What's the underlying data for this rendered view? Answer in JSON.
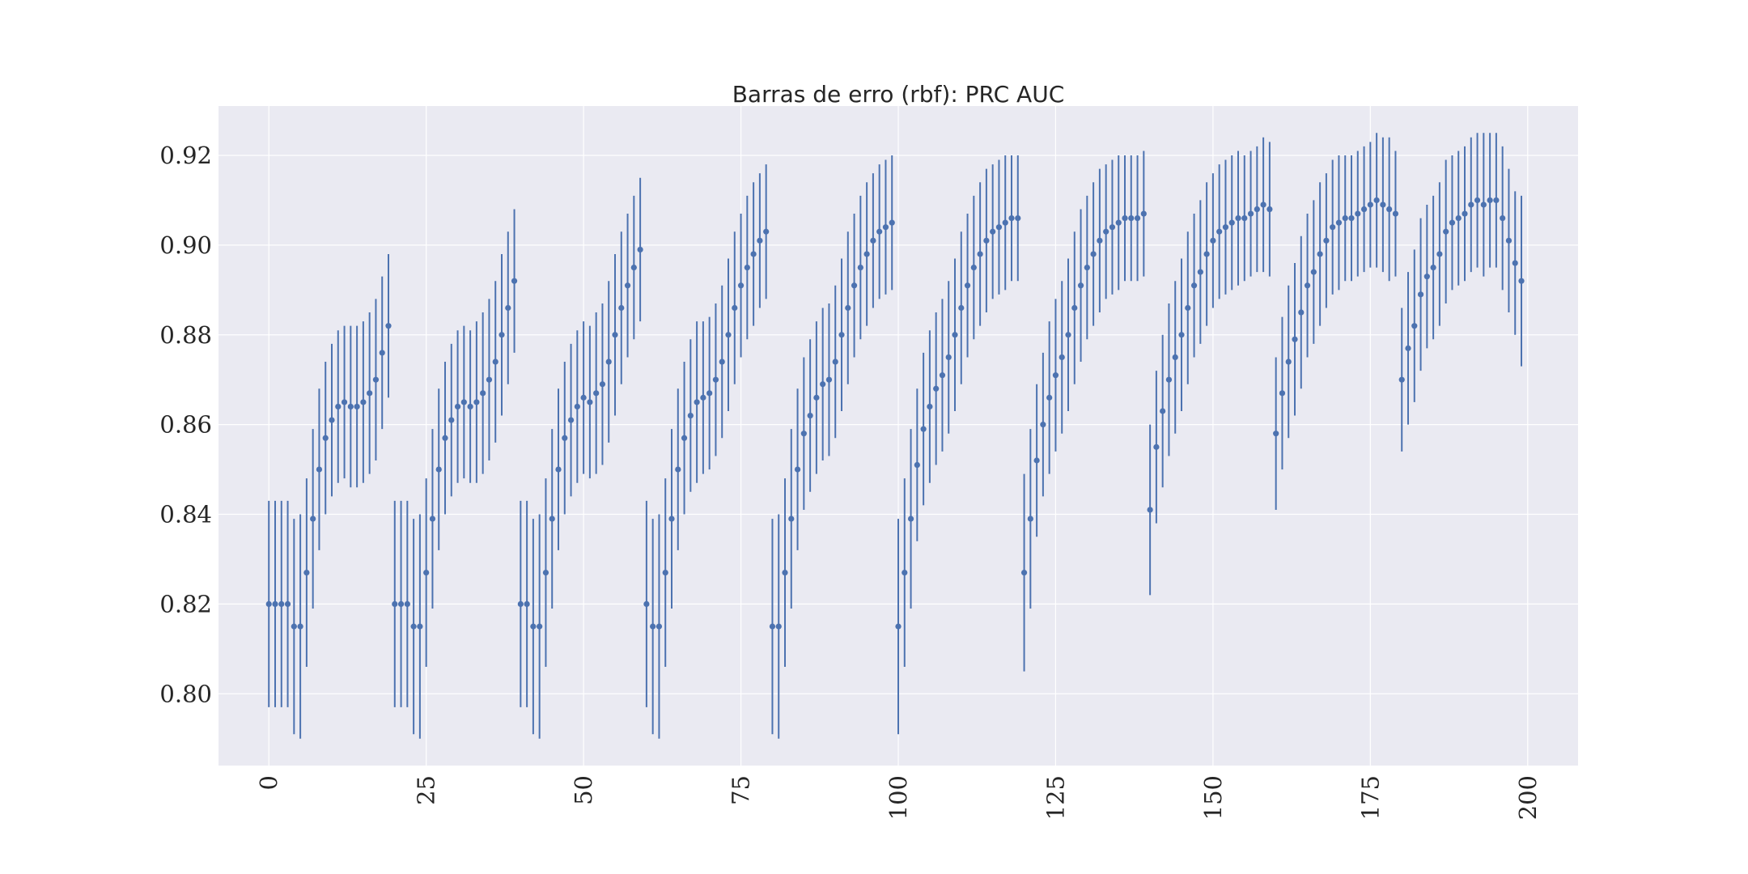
{
  "chart_data": {
    "type": "errorbar",
    "title": "Barras de erro (rbf): PRC AUC",
    "xlabel": "",
    "ylabel": "",
    "xlim": [
      -8,
      208
    ],
    "ylim": [
      0.784,
      0.931
    ],
    "x_ticks": [
      0,
      25,
      50,
      75,
      100,
      125,
      150,
      175,
      200
    ],
    "x_tick_labels": [
      "0",
      "25",
      "50",
      "75",
      "100",
      "125",
      "150",
      "175",
      "200"
    ],
    "y_ticks": [
      0.8,
      0.82,
      0.84,
      0.86,
      0.88,
      0.9,
      0.92
    ],
    "y_tick_labels": [
      "0.80",
      "0.82",
      "0.84",
      "0.86",
      "0.88",
      "0.90",
      "0.92"
    ],
    "grid": true,
    "colors": {
      "series": "#4c72b0",
      "plot_bg": "#eaeaf2",
      "grid": "#ffffff",
      "text": "#262626"
    },
    "series": [
      {
        "x": [
          0,
          1,
          2,
          3,
          4,
          5,
          6,
          7,
          8,
          9,
          10,
          11,
          12,
          13,
          14,
          15,
          16,
          17,
          18,
          19,
          20,
          21,
          22,
          23,
          24,
          25,
          26,
          27,
          28,
          29,
          30,
          31,
          32,
          33,
          34,
          35,
          36,
          37,
          38,
          39,
          40,
          41,
          42,
          43,
          44,
          45,
          46,
          47,
          48,
          49,
          50,
          51,
          52,
          53,
          54,
          55,
          56,
          57,
          58,
          59,
          60,
          61,
          62,
          63,
          64,
          65,
          66,
          67,
          68,
          69,
          70,
          71,
          72,
          73,
          74,
          75,
          76,
          77,
          78,
          79,
          80,
          81,
          82,
          83,
          84,
          85,
          86,
          87,
          88,
          89,
          90,
          91,
          92,
          93,
          94,
          95,
          96,
          97,
          98,
          99,
          100,
          101,
          102,
          103,
          104,
          105,
          106,
          107,
          108,
          109,
          110,
          111,
          112,
          113,
          114,
          115,
          116,
          117,
          118,
          119,
          120,
          121,
          122,
          123,
          124,
          125,
          126,
          127,
          128,
          129,
          130,
          131,
          132,
          133,
          134,
          135,
          136,
          137,
          138,
          139,
          140,
          141,
          142,
          143,
          144,
          145,
          146,
          147,
          148,
          149,
          150,
          151,
          152,
          153,
          154,
          155,
          156,
          157,
          158,
          159,
          160,
          161,
          162,
          163,
          164,
          165,
          166,
          167,
          168,
          169,
          170,
          171,
          172,
          173,
          174,
          175,
          176,
          177,
          178,
          179,
          180,
          181,
          182,
          183,
          184,
          185,
          186,
          187,
          188,
          189,
          190,
          191,
          192,
          193,
          194,
          195,
          196,
          197,
          198,
          199
        ],
        "y": [
          0.82,
          0.82,
          0.82,
          0.82,
          0.815,
          0.815,
          0.827,
          0.839,
          0.85,
          0.857,
          0.861,
          0.864,
          0.865,
          0.864,
          0.864,
          0.865,
          0.867,
          0.87,
          0.876,
          0.882,
          0.82,
          0.82,
          0.82,
          0.815,
          0.815,
          0.827,
          0.839,
          0.85,
          0.857,
          0.861,
          0.864,
          0.865,
          0.864,
          0.865,
          0.867,
          0.87,
          0.874,
          0.88,
          0.886,
          0.892,
          0.82,
          0.82,
          0.815,
          0.815,
          0.827,
          0.839,
          0.85,
          0.857,
          0.861,
          0.864,
          0.866,
          0.865,
          0.867,
          0.869,
          0.874,
          0.88,
          0.886,
          0.891,
          0.895,
          0.899,
          0.82,
          0.815,
          0.815,
          0.827,
          0.839,
          0.85,
          0.857,
          0.862,
          0.865,
          0.866,
          0.867,
          0.87,
          0.874,
          0.88,
          0.886,
          0.891,
          0.895,
          0.898,
          0.901,
          0.903,
          0.815,
          0.815,
          0.827,
          0.839,
          0.85,
          0.858,
          0.862,
          0.866,
          0.869,
          0.87,
          0.874,
          0.88,
          0.886,
          0.891,
          0.895,
          0.898,
          0.901,
          0.903,
          0.904,
          0.905,
          0.815,
          0.827,
          0.839,
          0.851,
          0.859,
          0.864,
          0.868,
          0.871,
          0.875,
          0.88,
          0.886,
          0.891,
          0.895,
          0.898,
          0.901,
          0.903,
          0.904,
          0.905,
          0.906,
          0.906,
          0.827,
          0.839,
          0.852,
          0.86,
          0.866,
          0.871,
          0.875,
          0.88,
          0.886,
          0.891,
          0.895,
          0.898,
          0.901,
          0.903,
          0.904,
          0.905,
          0.906,
          0.906,
          0.906,
          0.907,
          0.841,
          0.855,
          0.863,
          0.87,
          0.875,
          0.88,
          0.886,
          0.891,
          0.894,
          0.898,
          0.901,
          0.903,
          0.904,
          0.905,
          0.906,
          0.906,
          0.907,
          0.908,
          0.909,
          0.908,
          0.858,
          0.867,
          0.874,
          0.879,
          0.885,
          0.891,
          0.894,
          0.898,
          0.901,
          0.904,
          0.905,
          0.906,
          0.906,
          0.907,
          0.908,
          0.909,
          0.91,
          0.909,
          0.908,
          0.907,
          0.87,
          0.877,
          0.882,
          0.889,
          0.893,
          0.895,
          0.898,
          0.903,
          0.905,
          0.906,
          0.907,
          0.909,
          0.91,
          0.909,
          0.91,
          0.91,
          0.906,
          0.901,
          0.896,
          0.892
        ],
        "yerr": [
          0.023,
          0.023,
          0.023,
          0.023,
          0.024,
          0.025,
          0.021,
          0.02,
          0.018,
          0.017,
          0.017,
          0.017,
          0.017,
          0.018,
          0.018,
          0.018,
          0.018,
          0.018,
          0.017,
          0.016,
          0.023,
          0.023,
          0.023,
          0.024,
          0.025,
          0.021,
          0.02,
          0.018,
          0.017,
          0.017,
          0.017,
          0.017,
          0.017,
          0.018,
          0.018,
          0.018,
          0.018,
          0.018,
          0.017,
          0.016,
          0.023,
          0.023,
          0.024,
          0.025,
          0.021,
          0.02,
          0.018,
          0.017,
          0.017,
          0.017,
          0.017,
          0.017,
          0.018,
          0.018,
          0.018,
          0.018,
          0.017,
          0.016,
          0.016,
          0.016,
          0.023,
          0.024,
          0.025,
          0.021,
          0.02,
          0.018,
          0.017,
          0.017,
          0.018,
          0.017,
          0.017,
          0.017,
          0.017,
          0.017,
          0.017,
          0.016,
          0.016,
          0.016,
          0.015,
          0.015,
          0.024,
          0.025,
          0.021,
          0.02,
          0.018,
          0.017,
          0.017,
          0.017,
          0.017,
          0.017,
          0.017,
          0.017,
          0.017,
          0.016,
          0.016,
          0.016,
          0.015,
          0.015,
          0.015,
          0.015,
          0.024,
          0.021,
          0.02,
          0.017,
          0.017,
          0.017,
          0.017,
          0.017,
          0.017,
          0.017,
          0.017,
          0.016,
          0.016,
          0.016,
          0.016,
          0.015,
          0.015,
          0.015,
          0.014,
          0.014,
          0.022,
          0.02,
          0.017,
          0.016,
          0.017,
          0.017,
          0.017,
          0.017,
          0.017,
          0.017,
          0.016,
          0.016,
          0.016,
          0.015,
          0.015,
          0.015,
          0.014,
          0.014,
          0.014,
          0.014,
          0.019,
          0.017,
          0.017,
          0.017,
          0.017,
          0.017,
          0.017,
          0.016,
          0.016,
          0.016,
          0.015,
          0.015,
          0.015,
          0.015,
          0.015,
          0.014,
          0.014,
          0.014,
          0.015,
          0.015,
          0.017,
          0.017,
          0.017,
          0.017,
          0.017,
          0.016,
          0.016,
          0.016,
          0.015,
          0.015,
          0.015,
          0.014,
          0.014,
          0.014,
          0.014,
          0.014,
          0.015,
          0.015,
          0.016,
          0.014,
          0.016,
          0.017,
          0.017,
          0.017,
          0.016,
          0.016,
          0.016,
          0.016,
          0.015,
          0.015,
          0.015,
          0.015,
          0.015,
          0.016,
          0.015,
          0.015,
          0.016,
          0.016,
          0.016,
          0.019
        ]
      }
    ]
  }
}
